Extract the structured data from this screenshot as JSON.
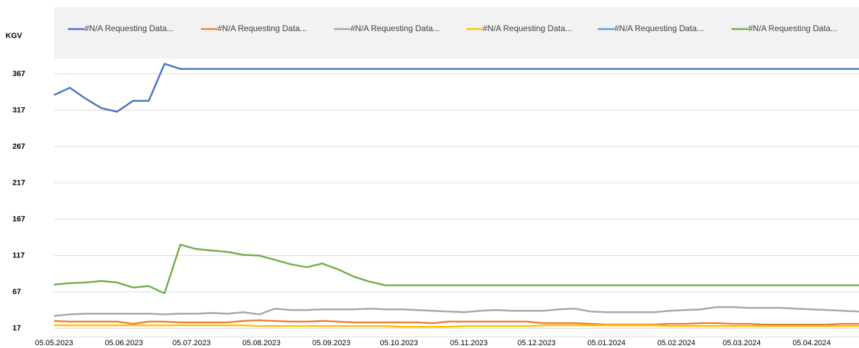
{
  "chart_data": {
    "type": "line",
    "y_label": "KGV",
    "x": [
      "05.05.2023",
      "12.05.2023",
      "19.05.2023",
      "26.05.2023",
      "02.06.2023",
      "09.06.2023",
      "16.06.2023",
      "23.06.2023",
      "30.06.2023",
      "07.07.2023",
      "14.07.2023",
      "21.07.2023",
      "28.07.2023",
      "04.08.2023",
      "11.08.2023",
      "18.08.2023",
      "25.08.2023",
      "01.09.2023",
      "08.09.2023",
      "15.09.2023",
      "22.09.2023",
      "29.09.2023",
      "06.10.2023",
      "13.10.2023",
      "20.10.2023",
      "27.10.2023",
      "03.11.2023",
      "10.11.2023",
      "17.11.2023",
      "24.11.2023",
      "01.12.2023",
      "08.12.2023",
      "15.12.2023",
      "22.12.2023",
      "29.12.2023",
      "05.01.2024",
      "12.01.2024",
      "19.01.2024",
      "26.01.2024",
      "02.02.2024",
      "09.02.2024",
      "16.02.2024",
      "23.02.2024",
      "01.03.2024",
      "08.03.2024",
      "15.03.2024",
      "22.03.2024",
      "29.03.2024",
      "05.04.2024",
      "12.04.2024",
      "19.04.2024",
      "26.04.2024"
    ],
    "series": [
      {
        "name": "#N/A Requesting Data...",
        "color": "#4472c4",
        "values": [
          338,
          348,
          333,
          320,
          315,
          330,
          330,
          381,
          374,
          374,
          374,
          374,
          374,
          374,
          374,
          374,
          374,
          374,
          374,
          374,
          374,
          374,
          374,
          374,
          374,
          374,
          374,
          374,
          374,
          374,
          374,
          374,
          374,
          374,
          374,
          374,
          374,
          374,
          374,
          374,
          374,
          374,
          374,
          374,
          374,
          374,
          374,
          374,
          374,
          374,
          374,
          374
        ]
      },
      {
        "name": "#N/A Requesting Data...",
        "color": "#ed7d31",
        "values": [
          27,
          26,
          26,
          26,
          26,
          23,
          26,
          26,
          25,
          25,
          25,
          25,
          27,
          28,
          27,
          26,
          26,
          27,
          26,
          25,
          25,
          25,
          25,
          25,
          24,
          26,
          26,
          26,
          26,
          26,
          26,
          24,
          24,
          24,
          23,
          22,
          22,
          22,
          22,
          23,
          23,
          24,
          24,
          23,
          23,
          22,
          22,
          22,
          22,
          22,
          23,
          23
        ]
      },
      {
        "name": "#N/A Requesting Data...",
        "color": "#a5a5a5",
        "values": [
          34,
          36,
          37,
          37,
          37,
          37,
          37,
          36,
          37,
          37,
          38,
          37,
          39,
          36,
          44,
          42,
          42,
          43,
          43,
          43,
          44,
          43,
          43,
          42,
          41,
          40,
          39,
          41,
          42,
          41,
          41,
          41,
          43,
          44,
          40,
          39,
          39,
          39,
          39,
          41,
          42,
          43,
          46,
          46,
          45,
          45,
          45,
          44,
          43,
          42,
          41,
          40
        ]
      },
      {
        "name": "#N/A Requesting Data...",
        "color": "#ffc000",
        "values": [
          21,
          21,
          21,
          21,
          21,
          21,
          21,
          21,
          21,
          21,
          21,
          21,
          21,
          20,
          20,
          20,
          20,
          20,
          20,
          20,
          20,
          20,
          19,
          19,
          19,
          19,
          20,
          20,
          20,
          20,
          20,
          21,
          21,
          21,
          21,
          21,
          21,
          21,
          21,
          20,
          20,
          20,
          20,
          20,
          20,
          20,
          20,
          20,
          20,
          20,
          20,
          20
        ]
      },
      {
        "name": "#N/A Requesting Data...",
        "color": "#5b9bd5",
        "values": [
          null,
          null,
          null,
          null,
          null,
          null,
          null,
          null,
          null,
          null,
          null,
          null,
          null,
          null,
          null,
          null,
          null,
          null,
          null,
          null,
          null,
          null,
          null,
          null,
          null,
          null,
          null,
          null,
          null,
          null,
          null,
          null,
          null,
          null,
          null,
          null,
          null,
          null,
          null,
          null,
          null,
          null,
          null,
          null,
          null,
          null,
          null,
          null,
          null,
          null,
          null,
          null
        ]
      },
      {
        "name": "#N/A Requesting Data...",
        "color": "#70ad47",
        "values": [
          77,
          79,
          80,
          82,
          80,
          73,
          75,
          65,
          132,
          126,
          124,
          122,
          118,
          117,
          111,
          105,
          101,
          106,
          98,
          88,
          81,
          76,
          76,
          76,
          76,
          76,
          76,
          76,
          76,
          76,
          76,
          76,
          76,
          76,
          76,
          76,
          76,
          76,
          76,
          76,
          76,
          76,
          76,
          76,
          76,
          76,
          76,
          76,
          76,
          76,
          76,
          76
        ]
      }
    ],
    "xlim": [
      "05.05.2023",
      "26.04.2024"
    ],
    "xticks": [
      "05.05.2023",
      "05.06.2023",
      "05.07.2023",
      "05.08.2023",
      "05.09.2023",
      "05.10.2023",
      "05.11.2023",
      "05.12.2023",
      "05.01.2024",
      "05.02.2024",
      "05.03.2024",
      "05.04.2024"
    ],
    "ylim": [
      5,
      385
    ],
    "yticks": [
      17,
      67,
      117,
      167,
      217,
      267,
      317,
      367
    ],
    "grid": true
  }
}
